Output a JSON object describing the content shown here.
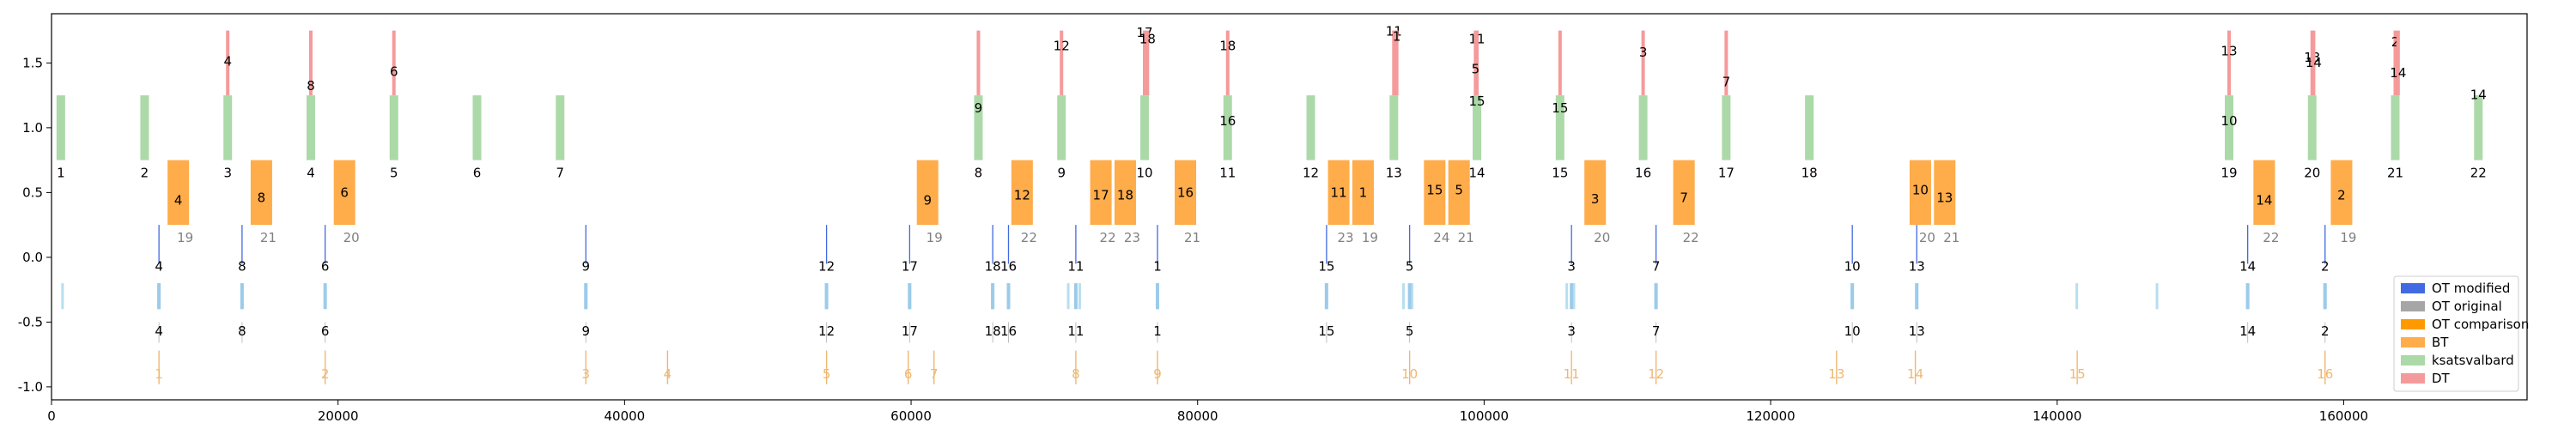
{
  "chart_data": {
    "type": "timeline",
    "xlim": [
      0,
      172800
    ],
    "ylim": [
      -1.1,
      1.88
    ],
    "x_ticks": [
      {
        "value": 0,
        "label": "0"
      },
      {
        "value": 20000,
        "label": "20000"
      },
      {
        "value": 40000,
        "label": "40000"
      },
      {
        "value": 60000,
        "label": "60000"
      },
      {
        "value": 80000,
        "label": "80000"
      },
      {
        "value": 100000,
        "label": "100000"
      },
      {
        "value": 120000,
        "label": "120000"
      },
      {
        "value": 140000,
        "label": "140000"
      },
      {
        "value": 160000,
        "label": "160000"
      }
    ],
    "y_ticks": [
      {
        "value": 1.5,
        "label": "1.5"
      },
      {
        "value": 1.0,
        "label": "1.0"
      },
      {
        "value": 0.5,
        "label": "0.5"
      },
      {
        "value": 0.0,
        "label": "0.0"
      },
      {
        "value": -0.5,
        "label": "-0.5"
      },
      {
        "value": -1.0,
        "label": "-1.0"
      }
    ],
    "legend_position": "lower-right",
    "legend": [
      {
        "name": "OT modified",
        "color": "#4169e1"
      },
      {
        "name": "OT original",
        "color": "#a6a6a6"
      },
      {
        "name": "OT comparison",
        "color": "#ff9900"
      },
      {
        "name": "BT",
        "color": "#ffac4a"
      },
      {
        "name": "ksatsvalbard",
        "color": "#acd9a8"
      },
      {
        "name": "DT",
        "color": "#f59a9a"
      }
    ],
    "ksat_passes": [
      {
        "x": 650,
        "label": "1"
      },
      {
        "x": 6500,
        "label": "2"
      },
      {
        "x": 12300,
        "label": "3"
      },
      {
        "x": 18100,
        "label": "4"
      },
      {
        "x": 23900,
        "label": "5"
      },
      {
        "x": 29700,
        "label": "6"
      },
      {
        "x": 35500,
        "label": "7"
      },
      {
        "x": 64700,
        "label": "8"
      },
      {
        "x": 70500,
        "label": "9"
      },
      {
        "x": 76300,
        "label": "10"
      },
      {
        "x": 82100,
        "label": "11"
      },
      {
        "x": 87900,
        "label": "12"
      },
      {
        "x": 93700,
        "label": "13"
      },
      {
        "x": 99500,
        "label": "14"
      },
      {
        "x": 105300,
        "label": "15"
      },
      {
        "x": 111100,
        "label": "16"
      },
      {
        "x": 116900,
        "label": "17"
      },
      {
        "x": 122700,
        "label": "18"
      },
      {
        "x": 152000,
        "label": "19"
      },
      {
        "x": 157800,
        "label": "20"
      },
      {
        "x": 163600,
        "label": "21"
      },
      {
        "x": 169400,
        "label": "22"
      }
    ],
    "ksat_labels": [
      {
        "x": 64700,
        "y": 1.12,
        "label": "9"
      },
      {
        "x": 82100,
        "y": 1.02,
        "label": "16"
      },
      {
        "x": 99500,
        "y": 1.17,
        "label": "15"
      },
      {
        "x": 105300,
        "y": 1.12,
        "label": "15"
      },
      {
        "x": 152000,
        "y": 1.02,
        "label": "10"
      },
      {
        "x": 169400,
        "y": 1.22,
        "label": "14"
      }
    ],
    "bt_blocks": [
      {
        "x0": 8100,
        "x1": 9600,
        "label": "4",
        "label_y": 0.44,
        "pass": "19"
      },
      {
        "x0": 13900,
        "x1": 15400,
        "label": "8",
        "label_y": 0.46,
        "pass": "21"
      },
      {
        "x0": 19700,
        "x1": 21200,
        "label": "6",
        "label_y": 0.5,
        "pass": "20"
      },
      {
        "x0": 60400,
        "x1": 61900,
        "label": "9",
        "label_y": 0.44,
        "pass": "19"
      },
      {
        "x0": 67000,
        "x1": 68500,
        "label": "12",
        "label_y": 0.48,
        "pass": "22"
      },
      {
        "x0": 72500,
        "x1": 74000,
        "label": "17",
        "label_y": 0.48,
        "pass": "22"
      },
      {
        "x0": 74200,
        "x1": 75700,
        "label": "18",
        "label_y": 0.48,
        "pass": "23"
      },
      {
        "x0": 78400,
        "x1": 79900,
        "label": "16",
        "label_y": 0.5,
        "pass": "21"
      },
      {
        "x0": 89100,
        "x1": 90600,
        "label": "11",
        "label_y": 0.5,
        "pass": "23"
      },
      {
        "x0": 90800,
        "x1": 92300,
        "label": "1",
        "label_y": 0.5,
        "pass": "19"
      },
      {
        "x0": 95800,
        "x1": 97300,
        "label": "15",
        "label_y": 0.52,
        "pass": "24"
      },
      {
        "x0": 97500,
        "x1": 99000,
        "label": "5",
        "label_y": 0.52,
        "pass": "21"
      },
      {
        "x0": 107000,
        "x1": 108500,
        "label": "3",
        "label_y": 0.45,
        "pass": "20"
      },
      {
        "x0": 113200,
        "x1": 114700,
        "label": "7",
        "label_y": 0.46,
        "pass": "22"
      },
      {
        "x0": 129700,
        "x1": 131200,
        "label": "10",
        "label_y": 0.52,
        "pass": "20"
      },
      {
        "x0": 131400,
        "x1": 132900,
        "label": "13",
        "label_y": 0.46,
        "pass": "21"
      },
      {
        "x0": 153700,
        "x1": 155200,
        "label": "14",
        "label_y": 0.44,
        "pass": "22"
      },
      {
        "x0": 159100,
        "x1": 160600,
        "label": "2",
        "label_y": 0.48,
        "pass": "19"
      }
    ],
    "dt_events": [
      {
        "x": 12300,
        "label": "4",
        "label_y": 1.48
      },
      {
        "x": 18100,
        "label": "8",
        "label_y": 1.29
      },
      {
        "x": 23900,
        "label": "6",
        "label_y": 1.4
      },
      {
        "x": 64700,
        "label": "",
        "label_y": 0
      },
      {
        "x": 70500,
        "label": "12",
        "label_y": 1.6
      },
      {
        "x": 76300,
        "label": "17",
        "label_y": 1.7
      },
      {
        "x": 76500,
        "label": "18",
        "label_y": 1.65
      },
      {
        "x": 82100,
        "label": "18",
        "label_y": 1.6
      },
      {
        "x": 93700,
        "label": "11",
        "label_y": 1.71
      },
      {
        "x": 93900,
        "label": "1",
        "label_y": 1.67
      },
      {
        "x": 99500,
        "label": "11",
        "label_y": 1.65
      },
      {
        "x": 99400,
        "label": "5",
        "label_y": 1.42
      },
      {
        "x": 105300,
        "label": "",
        "label_y": 0
      },
      {
        "x": 111100,
        "label": "3",
        "label_y": 1.55
      },
      {
        "x": 116900,
        "label": "7",
        "label_y": 1.32
      },
      {
        "x": 152000,
        "label": "13",
        "label_y": 1.56
      },
      {
        "x": 157800,
        "label": "13",
        "label_y": 1.51
      },
      {
        "x": 157900,
        "label": "14",
        "label_y": 1.47
      },
      {
        "x": 163600,
        "label": "2",
        "label_y": 1.63
      },
      {
        "x": 163800,
        "label": "14",
        "label_y": 1.39
      }
    ],
    "ot_modified": [
      {
        "x": 7500,
        "label": "4"
      },
      {
        "x": 13300,
        "label": "8"
      },
      {
        "x": 19100,
        "label": "6"
      },
      {
        "x": 37300,
        "label": "9"
      },
      {
        "x": 54100,
        "label": "12"
      },
      {
        "x": 59900,
        "label": "17"
      },
      {
        "x": 65700,
        "label": "18"
      },
      {
        "x": 66800,
        "label": "16"
      },
      {
        "x": 71500,
        "label": "11"
      },
      {
        "x": 77200,
        "label": "1"
      },
      {
        "x": 89000,
        "label": "15"
      },
      {
        "x": 94800,
        "label": "5"
      },
      {
        "x": 106100,
        "label": "3"
      },
      {
        "x": 112000,
        "label": "7"
      },
      {
        "x": 125700,
        "label": "10"
      },
      {
        "x": 130200,
        "label": "13"
      },
      {
        "x": 153300,
        "label": "14"
      },
      {
        "x": 158700,
        "label": "2"
      }
    ],
    "ot_original_marks": [
      800,
      7500,
      13300,
      37300,
      54100,
      59900,
      65700,
      66800,
      71000,
      71800,
      77200,
      89000,
      94400,
      95000,
      105800,
      106300,
      112000,
      125700,
      130200,
      141400,
      147000,
      153300,
      158700
    ],
    "ot_comparison": [
      {
        "x": 7500,
        "label": "1"
      },
      {
        "x": 19100,
        "label": "2"
      },
      {
        "x": 37300,
        "label": "3"
      },
      {
        "x": 43000,
        "label": "4"
      },
      {
        "x": 54100,
        "label": "5"
      },
      {
        "x": 59800,
        "label": "6"
      },
      {
        "x": 61600,
        "label": "7"
      },
      {
        "x": 71500,
        "label": "8"
      },
      {
        "x": 77200,
        "label": "9"
      },
      {
        "x": 94800,
        "label": "10"
      },
      {
        "x": 106100,
        "label": "11"
      },
      {
        "x": 112000,
        "label": "12"
      },
      {
        "x": 124600,
        "label": "13"
      },
      {
        "x": 130100,
        "label": "14"
      },
      {
        "x": 141400,
        "label": "15"
      },
      {
        "x": 158700,
        "label": "16"
      }
    ]
  }
}
